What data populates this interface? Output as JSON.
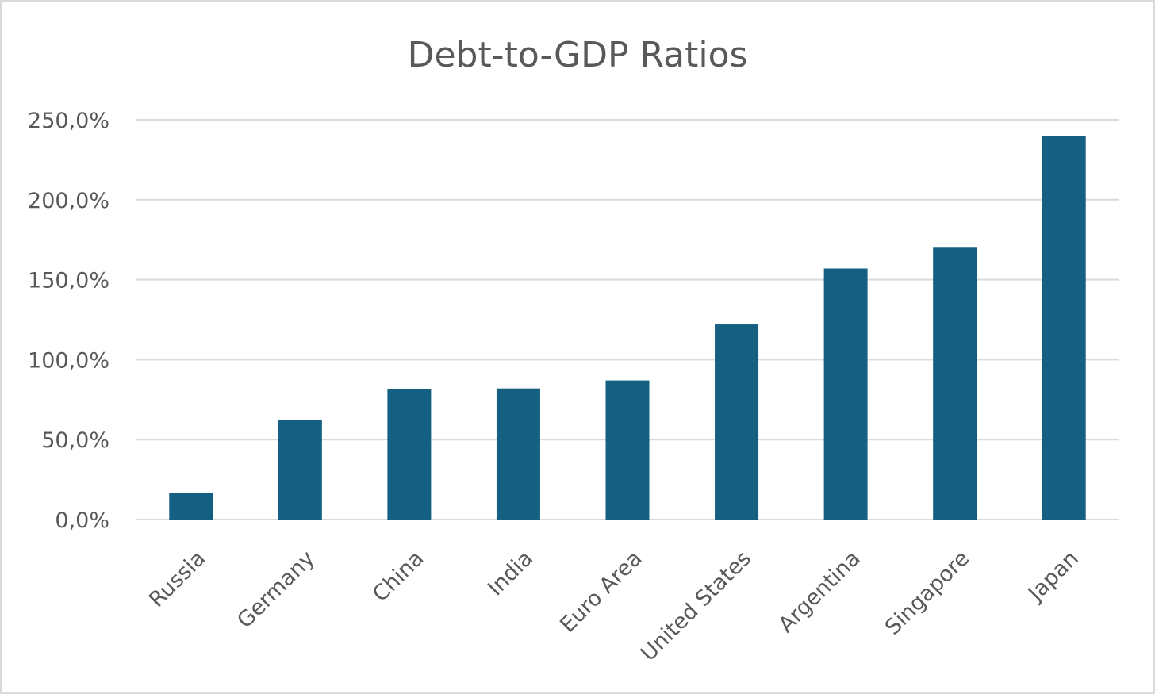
{
  "chart_data": {
    "type": "bar",
    "title": "Debt-to-GDP Ratios",
    "xlabel": "",
    "ylabel": "",
    "categories": [
      "Russia",
      "Germany",
      "China",
      "India",
      "Euro Area",
      "United States",
      "Argentina",
      "Singapore",
      "Japan"
    ],
    "values": [
      16.5,
      62.5,
      81.5,
      82,
      87,
      122,
      157,
      170,
      240
    ],
    "ylim": [
      0,
      250
    ],
    "yticks": [
      0,
      50,
      100,
      150,
      200,
      250
    ],
    "ytick_labels": [
      "0,0%",
      "50,0%",
      "100,0%",
      "150,0%",
      "200,0%",
      "250,0%"
    ],
    "grid": true,
    "legend": "none",
    "bar_color": "#156082"
  }
}
